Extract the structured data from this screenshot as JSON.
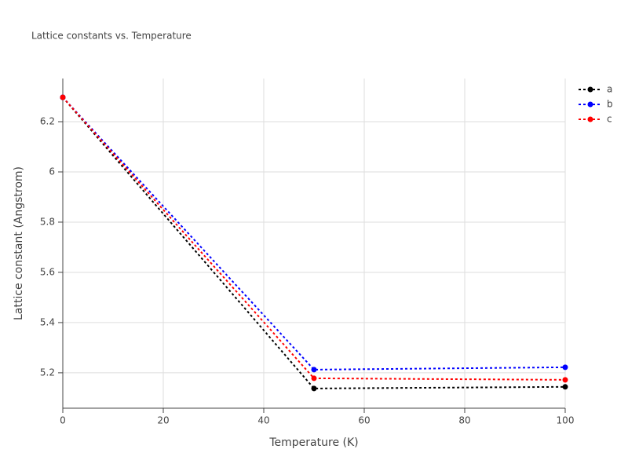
{
  "chart_data": {
    "type": "line",
    "title": "Lattice constants vs. Temperature",
    "x_label": "Temperature (K)",
    "y_label": "Lattice constant (Angstrom)",
    "x": [
      0,
      50,
      100
    ],
    "series": [
      {
        "name": "a",
        "color": "#000000",
        "values": [
          6.297,
          5.1375,
          5.144
        ]
      },
      {
        "name": "b",
        "color": "#0000ff",
        "values": [
          6.297,
          5.2125,
          5.222
        ]
      },
      {
        "name": "c",
        "color": "#ff0000",
        "values": [
          6.297,
          5.178,
          5.172
        ]
      }
    ],
    "xlim": [
      0,
      100
    ],
    "xticks": [
      0,
      20,
      40,
      60,
      80,
      100
    ],
    "ylim": [
      5.059,
      6.372
    ],
    "yticks": [
      5.2,
      5.4,
      5.6,
      5.8,
      6,
      6.2
    ],
    "grid": true,
    "legend": "top-right",
    "line_style": "dotted"
  }
}
